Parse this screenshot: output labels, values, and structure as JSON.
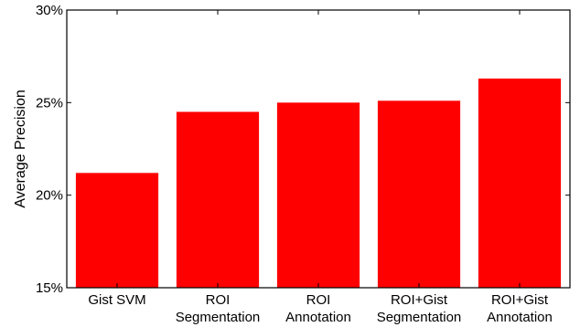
{
  "chart_data": {
    "type": "bar",
    "categories": [
      [
        "Gist SVM"
      ],
      [
        "ROI",
        "Segmentation"
      ],
      [
        "ROI",
        "Annotation"
      ],
      [
        "ROI+Gist",
        "Segmentation"
      ],
      [
        "ROI+Gist",
        "Annotation"
      ]
    ],
    "values": [
      21.2,
      24.5,
      25.0,
      25.1,
      26.3
    ],
    "ylabel": "Average Precision",
    "ylim": [
      15,
      30
    ],
    "yticks": [
      15,
      20,
      25,
      30
    ],
    "ytick_labels": [
      "15%",
      "20%",
      "25%",
      "30%"
    ],
    "bar_color": "#ff0000",
    "grid": false
  }
}
